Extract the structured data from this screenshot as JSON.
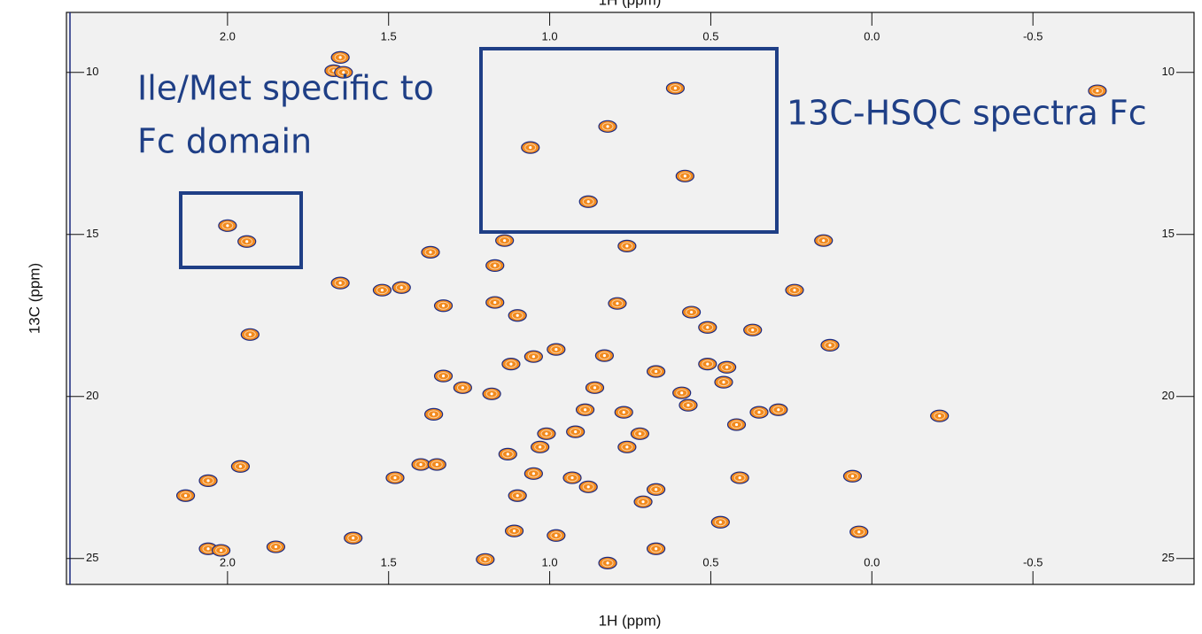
{
  "chart_data": {
    "type": "scatter",
    "x_label": "1H (ppm)",
    "y_label": "13C (ppm)",
    "annotations": [
      "Ile/Met specific to",
      "Fc domain",
      "13C-HSQC spectra Fc"
    ],
    "xlim": [
      2.5,
      -1.0
    ],
    "ylim": [
      8.15,
      25.8
    ],
    "y_inverted": true,
    "xticks": [
      {
        "value": 2,
        "label": "2.0"
      },
      1.5,
      {
        "value": 1,
        "label": "1.0"
      },
      0.5,
      {
        "value": 0,
        "label": "0.0"
      },
      -0.5
    ],
    "yticks": [
      10,
      15,
      20,
      25
    ],
    "color": "#f28a1e",
    "edge_color": "#1c2a80",
    "x": [
      2.0,
      1.94,
      0.61,
      0.82,
      1.06,
      0.58,
      0.88,
      1.65,
      1.67,
      1.64,
      1.37,
      1.14,
      0.76,
      1.17,
      1.52,
      1.46,
      1.17,
      1.33,
      1.65,
      1.1,
      0.79,
      0.56,
      0.37,
      0.51,
      0.24,
      0.83,
      0.98,
      1.05,
      1.12,
      1.33,
      1.27,
      1.18,
      0.67,
      0.51,
      0.45,
      0.46,
      0.59,
      0.86,
      1.36,
      0.77,
      0.57,
      0.35,
      0.29,
      0.42,
      0.89,
      0.92,
      1.01,
      1.13,
      0.76,
      0.72,
      -0.21,
      1.4,
      1.35,
      1.48,
      1.96,
      2.06,
      2.13,
      1.03,
      1.05,
      0.93,
      0.88,
      0.67,
      1.1,
      0.71,
      0.06,
      2.06,
      2.02,
      1.85,
      1.61,
      1.11,
      0.98,
      0.47,
      0.82,
      1.2,
      0.04,
      0.41,
      0.67,
      0.15,
      1.93,
      0.13,
      -0.7
    ],
    "values": [
      14.73,
      15.22,
      10.49,
      11.67,
      12.32,
      13.2,
      13.99,
      9.54,
      9.95,
      10.0,
      15.55,
      15.19,
      15.36,
      15.96,
      16.72,
      16.64,
      17.1,
      17.2,
      16.5,
      17.5,
      17.13,
      17.4,
      17.95,
      17.87,
      16.72,
      18.74,
      18.55,
      18.77,
      19.0,
      19.37,
      19.73,
      19.92,
      19.23,
      19.0,
      19.1,
      19.56,
      19.89,
      19.73,
      20.55,
      20.49,
      20.27,
      20.49,
      20.41,
      20.87,
      20.41,
      21.09,
      21.15,
      21.78,
      21.56,
      21.15,
      20.6,
      22.1,
      22.1,
      22.51,
      22.16,
      22.6,
      23.06,
      21.56,
      22.38,
      22.51,
      22.79,
      22.87,
      23.06,
      23.25,
      22.46,
      24.7,
      24.75,
      24.64,
      24.37,
      24.15,
      24.29,
      23.88,
      25.14,
      25.03,
      24.18,
      22.51,
      24.7,
      15.19,
      18.09,
      18.42,
      10.57
    ]
  }
}
